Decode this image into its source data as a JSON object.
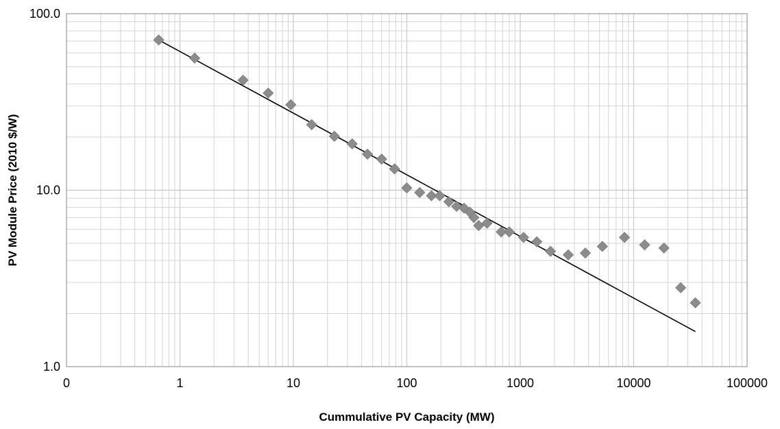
{
  "chart_data": {
    "type": "scatter",
    "xlabel": "Cummulative PV  Capacity (MW)",
    "ylabel": "PV Module Price (2010 $/W)",
    "xscale": "log",
    "yscale": "log",
    "xlim": [
      0.1,
      100000
    ],
    "ylim": [
      1.0,
      100.0
    ],
    "x_tick_labels": [
      "0",
      "1",
      "10",
      "100",
      "1000",
      "10000",
      "100000"
    ],
    "y_tick_labels": [
      "1.0",
      "10.0",
      "100.0"
    ],
    "grid": "on (major and minor)",
    "legend": "none",
    "marker_shape": "diamond",
    "marker_color": "#8c8c8c",
    "trendline_color": "#000000",
    "series": [
      {
        "x": [
          0.65,
          1.35,
          3.6,
          6.0,
          9.5,
          14.5,
          23,
          33,
          45,
          60,
          78,
          100,
          130,
          165,
          195,
          235,
          275,
          320,
          360,
          390,
          430,
          510,
          680,
          800,
          1070,
          1400,
          1850,
          2650,
          3750,
          5300,
          8300,
          12500,
          18500,
          26000,
          35000
        ],
        "y": [
          71,
          56,
          42,
          35.5,
          30.5,
          23.5,
          20.2,
          18.3,
          16,
          15,
          13.2,
          10.3,
          9.7,
          9.3,
          9.3,
          8.6,
          8.1,
          7.9,
          7.5,
          7.0,
          6.3,
          6.5,
          5.8,
          5.8,
          5.4,
          5.1,
          4.5,
          4.3,
          4.4,
          4.8,
          5.4,
          4.9,
          4.7,
          2.8,
          2.3
        ]
      }
    ],
    "trendline": {
      "type": "power",
      "x": [
        0.65,
        35000
      ],
      "y": [
        71,
        1.58
      ]
    }
  }
}
